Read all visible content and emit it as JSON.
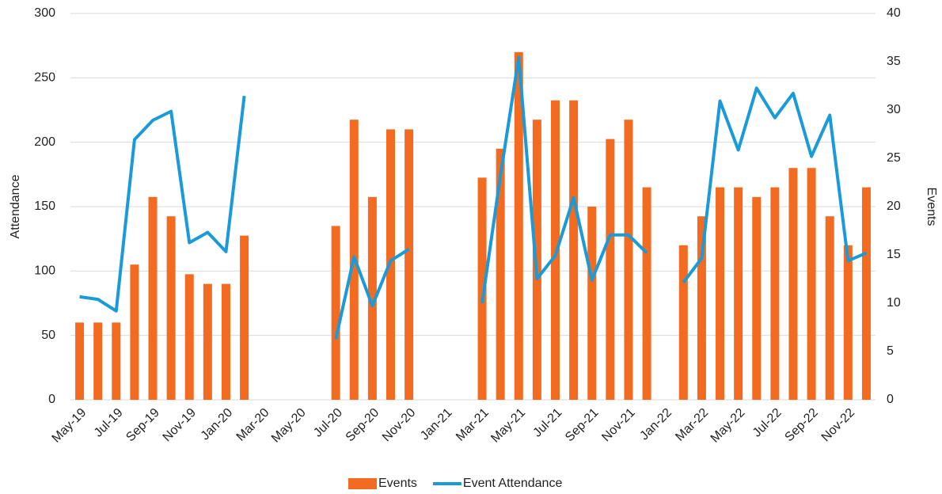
{
  "chart_data": {
    "type": "combo",
    "categories": [
      "May-19",
      null,
      "Jul-19",
      null,
      "Sep-19",
      null,
      "Nov-19",
      null,
      "Jan-20",
      null,
      "Mar-20",
      null,
      "May-20",
      null,
      "Jul-20",
      null,
      "Sep-20",
      null,
      "Nov-20",
      null,
      "Jan-21",
      null,
      "Mar-21",
      null,
      "May-21",
      null,
      "Jul-21",
      null,
      "Sep-21",
      null,
      "Nov-21",
      null,
      "Jan-22",
      null,
      "Mar-22",
      null,
      "May-22",
      null,
      "Jul-22",
      null,
      "Sep-22",
      null,
      "Nov-22",
      null
    ],
    "series": [
      {
        "name": "Events",
        "type": "bar",
        "axis": "y2",
        "color": "#f26b21",
        "values": [
          8,
          8,
          8,
          14,
          21,
          19,
          13,
          12,
          12,
          17,
          null,
          null,
          null,
          null,
          18,
          29,
          21,
          28,
          28,
          null,
          null,
          null,
          23,
          26,
          36,
          29,
          31,
          31,
          20,
          27,
          29,
          22,
          null,
          16,
          19,
          22,
          22,
          21,
          22,
          24,
          24,
          19,
          16,
          22
        ]
      },
      {
        "name": "Event Attendance",
        "type": "line",
        "color": "#1a9bd7",
        "values": [
          80,
          78,
          69,
          202,
          217,
          224,
          122,
          130,
          115,
          236,
          null,
          null,
          null,
          null,
          47,
          111,
          73,
          108,
          117,
          null,
          null,
          null,
          75,
          174,
          266,
          94,
          112,
          157,
          93,
          128,
          128,
          114,
          null,
          91,
          110,
          232,
          194,
          242,
          219,
          238,
          189,
          221,
          108,
          114
        ]
      }
    ],
    "y_label": "Attendance",
    "y2_label": "Events",
    "ylim": [
      0,
      300
    ],
    "yticks": [
      0,
      50,
      100,
      150,
      200,
      250,
      300
    ],
    "y2lim": [
      0,
      40
    ],
    "y2ticks": [
      0,
      5,
      10,
      15,
      20,
      25,
      30,
      35,
      40
    ],
    "grid": true,
    "legend": "bottom"
  }
}
